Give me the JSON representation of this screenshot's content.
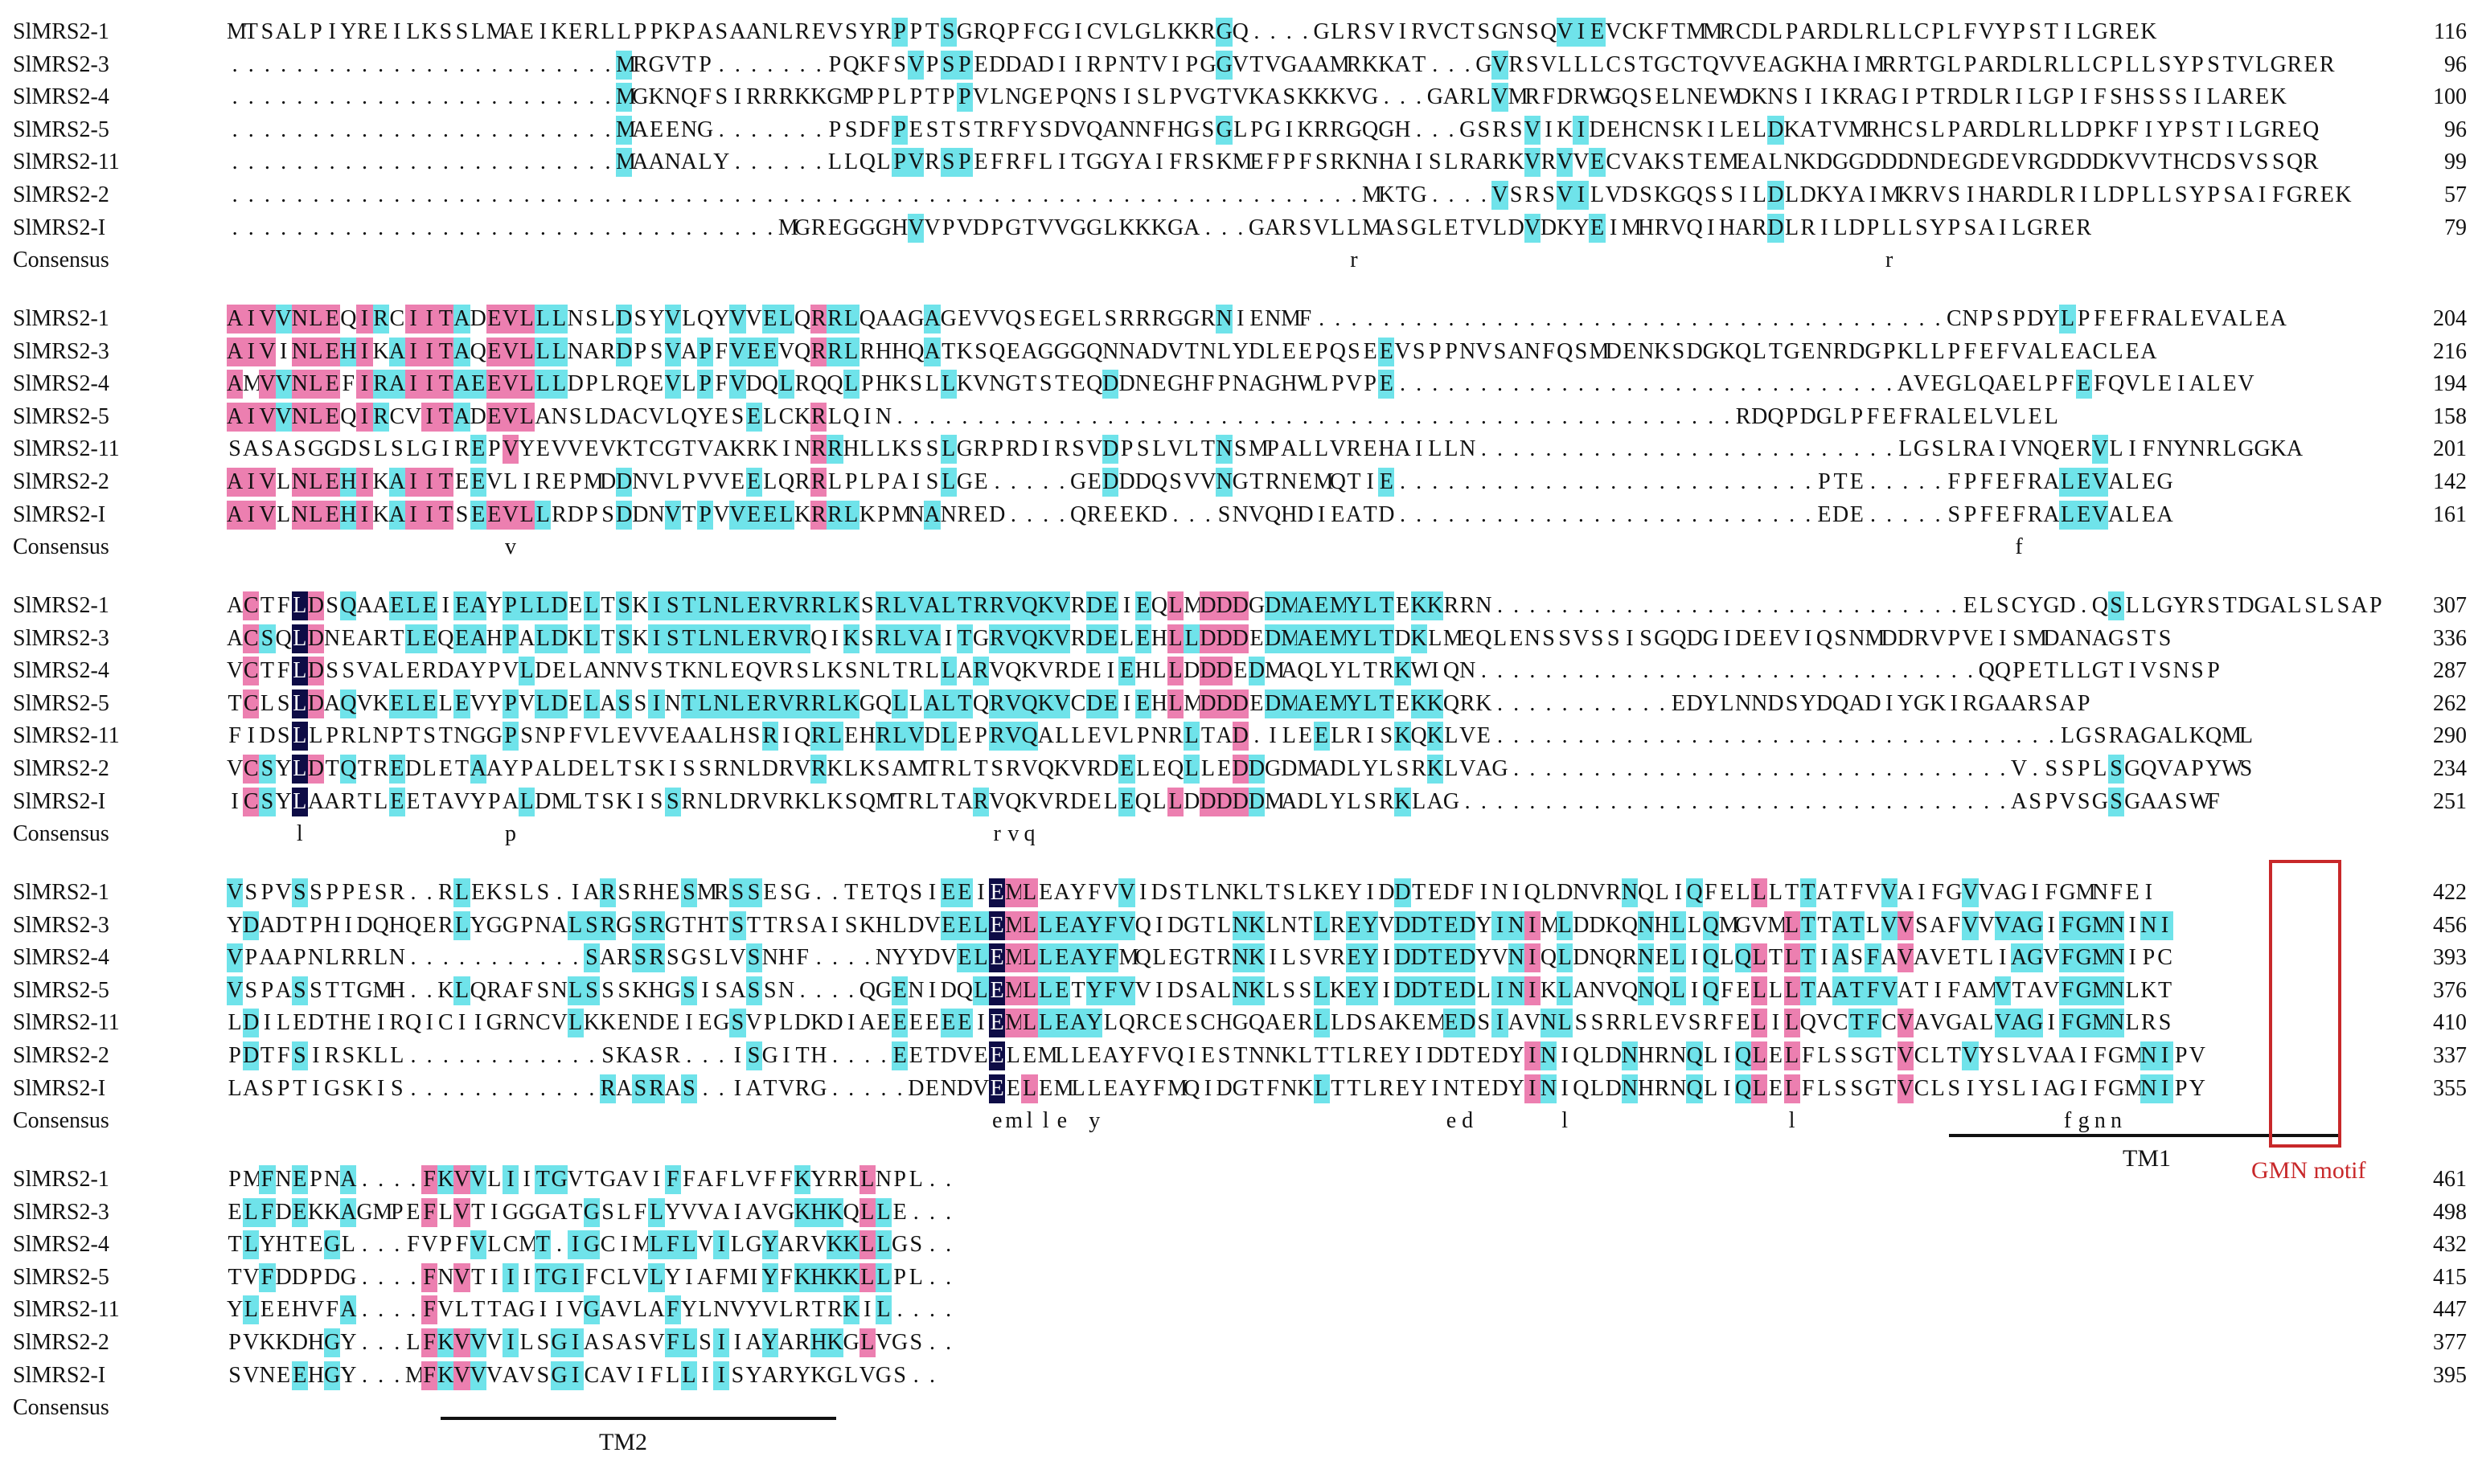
{
  "blocks": [
    {
      "rows": [
        {
          "name": "SlMRS2-1",
          "sequence": "MTSALPIYREILKSSLMAEIKERLLPPKPASAANLREVSYRPPTSGRQPFCGICVLGLKKRGQ....GLRSVIRVCTSGNSQVIEVCKFTMMRCDLPARDLRLLCPLFVYPSTILGREK",
          "end": 116
        },
        {
          "name": "SlMRS2-3",
          "sequence": "........................MRGVTP.......PQKFSVPSPEDDADIIRPNTVIPGGVTVGAAMRKKAT...GVRSVLLLCSTGCTQVVEAGKHAIMRRTGLPARDLRLLCPLLSYPSTVLGRER",
          "end": 96
        },
        {
          "name": "SlMRS2-4",
          "sequence": "........................MGKNQFSIRRRKKGMPPLPTPPVLNGEPQNSISLPVGTVKASKKKVG...GARLVMRFDRWGQSELNEWDKNSIIKRAGIPTRDLRILGPIFSHSSSILAREK",
          "end": 100
        },
        {
          "name": "SlMRS2-5",
          "sequence": "........................MAEENG.......PSDFPESTSTRFYSDVQANNFHGSGLPGIKRRGQGH...GSRSVIKIDEHCNSKILELDKATVMRHCSLPARDLRLLDPKFIYPSTILGREQ",
          "end": 96
        },
        {
          "name": "SlMRS2-11",
          "sequence": "........................MAANALY......LLQLPVRSPEFRFLITGGYAIFRSKMEFPFSRKNHAISLRARKVRVVECVAKSTEMEALNKDGGDDDNDEGDEVRGDDDKVVTHCDSVSSQR",
          "end": 99
        },
        {
          "name": "SlMRS2-2",
          "sequence": "......................................................................MKTG....VSRSVILVDSKGQSSILDLDKYAIMKRVSIHARDLRILDPLLSYPSAIFGREK",
          "end": 57
        },
        {
          "name": "SlMRS2-I",
          "sequence": "..................................MGREGGGHVVPVDPGTVVGGLKKKGA...GARSVLLMASGLETVLDVDKYEIMHRVQIHARDLRILDPLLSYPSAILGRER",
          "end": 79
        }
      ],
      "consensus_label": "Consensus",
      "consensus": "                                                                     r                                r"
    },
    {
      "rows": [
        {
          "name": "SlMRS2-1",
          "sequence": "AIVVNLEQIRCIITADEVLLLNSLDSYVLQYVVELQRRLQAAGAGEVVQSEGELSRRRGGRNIENMF.......................................CNPSPDYLPFEFRALEVALEA",
          "end": 204
        },
        {
          "name": "SlMRS2-3",
          "sequence": "AIVINLEHIKAIITAQEVLLLNARDPSVAPFVEEVQRRLRHHQATKSQEAGGGQNNADVTNLYDLEEPQSEEVSPPNVSANFQSMDENKSDGKQLTGENRDGPKLLPFEFVALEACLEA",
          "end": 216
        },
        {
          "name": "SlMRS2-4",
          "sequence": "AMVVNLEFIRAIITAEEVLLLDPLRQEVLPFVDQLRQQLPHKSLLKVNGTSTEQDDNEGHFPNAGHWLPVPE...............................AVEGLQAELPFEFQVLEIALEV",
          "end": 194
        },
        {
          "name": "SlMRS2-5",
          "sequence": "AIVVNLEQIRCVITADEVLANSLDACVLQYESELCKRLQIN....................................................RDQPDGLPFEFRALELVLEL",
          "end": 158
        },
        {
          "name": "SlMRS2-11",
          "sequence": "SASASGGDSLSLGIREPVYEVVEVKTCGTVAKRKINRRHLLKSSLGRPRDIRSVDPSLVLTNSMPALLVREHAILLN..........................LGSLRAIVNQERVLIFNYNRLGGKA",
          "end": 201
        },
        {
          "name": "SlMRS2-2",
          "sequence": "AIVLNLEHIKAIITEEVLIREPMDDNVLPVVEELQRRLPLPAISLGE.....GEDDDQSVVNGTRNEMQTIE..........................PTE.....FPFEFRALEVALEG",
          "end": 142
        },
        {
          "name": "SlMRS2-I",
          "sequence": "AIVLNLEHIKAIITSEEVLLRDPSDDNVTPVVEELKRRLKPMNANRED....QREEKD...SNVQHDIEATD..........................EDE.....SPFEFRALEVALEA",
          "end": 161
        }
      ],
      "consensus_label": "Consensus",
      "consensus": "                 v                                                                                            f"
    },
    {
      "rows": [
        {
          "name": "SlMRS2-1",
          "sequence": "ACTFLDSQAAELEIEAYPLLDELTSKISTLNLERVRRLKSRLVALTRRVQKVRDEIEQLMDDDGDMAEMYLTEKKRRN.............................ELSCYGD.QSLLGYRSTDGALSLSAP",
          "end": 307
        },
        {
          "name": "SlMRS2-3",
          "sequence": "ACSQLDNEARTLEQEAHPALDKLTSKISTLNLERVRQIKSRLVAITGRVQKVRDELEHLLDDDEDMAEMYLTDKLMEQLENSSVSSISGQDGIDEEVIQSNMDDRVPVEISMDANAGSTS",
          "end": 336
        },
        {
          "name": "SlMRS2-4",
          "sequence": "VCTFLDSSVALERDAYPVLDELANNVSTKNLEQVRSLKSNLTRLLARVQKVRDEIEHLLDDDEDMAQLYLTRKWIQN...............................QQPETLLGTIVSNSP",
          "end": 287
        },
        {
          "name": "SlMRS2-5",
          "sequence": "TCLSLDAQVKELELEVYPVLDELASSINTLNLERVRRLKGQLLALTQRVQKVCDEIEHLMDDDEDMAEMYLTEKKQRK...........EDYLNNDSYDQADIYGKIRGAARSAP",
          "end": 262
        },
        {
          "name": "SlMRS2-11",
          "sequence": "FIDSLLPRLNPTSTNGGPSNPFVLEVVEAALHSRIQRLEHRLVDLEPRVQALLEVLPNRLTAD.ILEELRISKQKLVE...................................LGSRAGALKQML",
          "end": 290
        },
        {
          "name": "SlMRS2-2",
          "sequence": "VCSYLDTQTREDLETAAYPALDELTSKISSRNLDRVRKLKSAMTRLTSRVQKVRDELEQLLEDDGDMADLYLSRKLVAG...............................V.SSPLSGQVAPYWS",
          "end": 234
        },
        {
          "name": "SlMRS2-I",
          "sequence": "ICSYLAARTLEETAVYPALDMLTSKISSRNLDRVRKLKSQMTRLTARVQKVRDELEQLLDDDDDMADLYLSRKLAG..................................ASPVSGSGAASWF",
          "end": 251
        }
      ],
      "consensus_label": "Consensus",
      "consensus": "    l            p                             rvq"
    },
    {
      "rows": [
        {
          "name": "SlMRS2-1",
          "sequence": "VSPVSSPPESR..RLEKSLS.IARSRHESMRSSESG..TETQSIEEIEMLEAYFVVIDSTLNKLTSLKEYIDDTEDFINIQLDNVRNQLIQFELLLTTATFVVAIFGVVAGIFGMNFEI",
          "end": 422
        },
        {
          "name": "SlMRS2-3",
          "sequence": "YDADTPHIDQHQERLYGGPNALSRGSRGTHTSTTRSAISKHLDVEELEMLLEAYFVQIDGTLNKLNTLREYVDDTEDYINIMLDDKQNHLLQMGVMLTTATLVVSAFVVVAGIFGMNINI",
          "end": 456
        },
        {
          "name": "SlMRS2-4",
          "sequence": "VPAAPNLRRLN...........SARSRSGSLVSNHF....NYYDVELEMLLEAYFMQLEGTRNKILSVREYIDDTEDYVNIQLDNQRNELIQLQLTLTIASFAVAVETLIAGVFGMNIPC",
          "end": 393
        },
        {
          "name": "SlMRS2-5",
          "sequence": "VSPASSTTGMH..KLQRAFSNLSSSKHGSISASSN....QGENIDQLEMLLETYFVVIDSALNKLSSLKEYIDDTEDLINIKLANVQNQLIQFELLLTAATFVATIFAMVTAVFGMNLKT",
          "end": 376
        },
        {
          "name": "SlMRS2-11",
          "sequence": "LDILEDTHEIRQICIIGRNCVLKKENDEIEGSVPLDKDIAEEEEEEIEMLLEAYLQRCESCHGQAERLLDSAKEMEDSIAVNLSSRRLEVSRFELILQVCTFCVAVGALVAGIFGMNLRS",
          "end": 410
        },
        {
          "name": "SlMRS2-2",
          "sequence": "PDTFSIRSKLL............SKASR...ISGITH....EETDVEELEMLLEAYFVQIESTNNKLTTLREYIDDTEDYINIQLDNHRNQLIQLELFLSSGTVCLTVYSLVAAIFGMNIPV",
          "end": 337
        },
        {
          "name": "SlMRS2-I",
          "sequence": "LASPTIGSKIS............RASRAS..IATVRG.....DENDVEELEMLLEAYFMQIDGTFNKLTTLREYINTEDYINIQLDNHRNQLIQLELFLSSGTVCLSIYSLIAGIFGMNIPY",
          "end": 355
        }
      ],
      "consensus_label": "Consensus",
      "consensus": "                                               emlle y                     ed     l             l                fgnn"
    },
    {
      "rows": [
        {
          "name": "SlMRS2-1",
          "sequence": "PMFNEPNA....FKVVLIITGVTGAVIFFAFLVFFKYRRLNPL..",
          "end": 461
        },
        {
          "name": "SlMRS2-3",
          "sequence": "ELFDEKKAGMPEFLVTIGGGATGSLFLYVVAIAVGKHKQLLE...",
          "end": 498
        },
        {
          "name": "SlMRS2-4",
          "sequence": "TLYHTEGL...FVPFVLCMT.IGCIMLFLVILGYARVKKLLGS..",
          "end": 432
        },
        {
          "name": "SlMRS2-5",
          "sequence": "TVFDDPDG....FNVTIIITGIFCLVLYIAFMIYFKHKKLLPL..",
          "end": 415
        },
        {
          "name": "SlMRS2-11",
          "sequence": "YLEEHVFA....FVLTTAGIIVGAVLAFYLNVYVLRTRKIL....",
          "end": 447
        },
        {
          "name": "SlMRS2-2",
          "sequence": "PVKKDHGY...LFKVVVILSGIASASVFLSIIAYARHKGLVGS..",
          "end": 377
        },
        {
          "name": "SlMRS2-I",
          "sequence": "SVNEEHGY...MFKVVVAVSGICAVIFLLIISYARYKGLVGS..",
          "end": 395
        }
      ],
      "consensus_label": "Consensus",
      "consensus": ""
    }
  ],
  "annotations": {
    "tm1": "TM1",
    "gmn": "GMN motif",
    "tm2": "TM2"
  }
}
